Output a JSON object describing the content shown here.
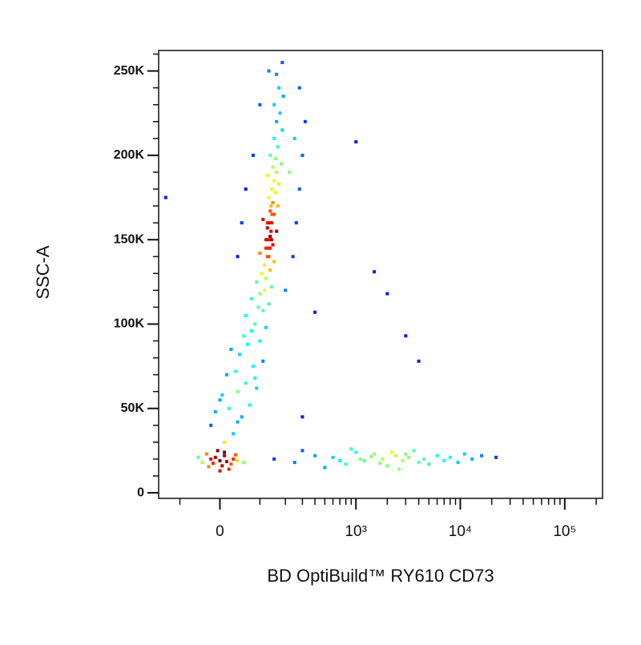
{
  "chart_data": {
    "type": "scatter",
    "x_label": "BD OptiBuild™ RY610 CD73",
    "y_label": "SSC-A",
    "xscale": "asinh",
    "x_cofactor": 100,
    "color_by": "density",
    "xlim": [
      -180,
      230000
    ],
    "ylim": [
      -3300,
      262144
    ],
    "xticks": [
      0,
      {
        "value": 1000,
        "label": "10³"
      },
      {
        "value": 10000,
        "label": "10⁴"
      },
      {
        "value": 100000,
        "label": "10⁵"
      }
    ],
    "xminorticks": [
      -100,
      100,
      200,
      300,
      400,
      500,
      600,
      700,
      800,
      900,
      2000,
      3000,
      4000,
      5000,
      6000,
      7000,
      8000,
      9000,
      20000,
      30000,
      40000,
      50000,
      60000,
      70000,
      80000,
      90000,
      200000
    ],
    "yticks": [
      0,
      {
        "value": 50000,
        "label": "50K"
      },
      {
        "value": 100000,
        "label": "100K"
      },
      {
        "value": 150000,
        "label": "150K"
      },
      {
        "value": 200000,
        "label": "200K"
      },
      {
        "value": 250000,
        "label": "250K"
      }
    ],
    "yminorticks": [
      10000,
      20000,
      30000,
      40000,
      60000,
      70000,
      80000,
      90000,
      110000,
      120000,
      130000,
      140000,
      160000,
      170000,
      180000,
      190000,
      210000,
      220000,
      230000,
      240000,
      260000
    ],
    "x": [
      -40,
      -20,
      0,
      10,
      25,
      -10,
      5,
      30,
      -30,
      15,
      -5,
      20,
      40,
      -50,
      0,
      10,
      -15,
      35,
      55,
      -25,
      10,
      30,
      -20,
      50,
      20,
      70,
      0,
      40,
      90,
      60,
      15,
      35,
      80,
      110,
      -10,
      45,
      25,
      65,
      100,
      55,
      5,
      75,
      120,
      40,
      85,
      85,
      60,
      110,
      95,
      130,
      75,
      100,
      115,
      140,
      90,
      120,
      105,
      135,
      115,
      150,
      125,
      100,
      130,
      145,
      120,
      135,
      160,
      125,
      140,
      110,
      150,
      135,
      165,
      145,
      130,
      155,
      140,
      170,
      150,
      125,
      160,
      145,
      180,
      155,
      135,
      165,
      150,
      185,
      160,
      175,
      150,
      190,
      170,
      160,
      185,
      130,
      120,
      128,
      138,
      132,
      142,
      138,
      140,
      135,
      125,
      200,
      240,
      260,
      280,
      300,
      320,
      280,
      60,
      80,
      50,
      40,
      100,
      130,
      250,
      220,
      150,
      250,
      400,
      600,
      800,
      1000,
      1200,
      1500,
      1800,
      2000,
      2400,
      2800,
      3200,
      3600,
      4000,
      4500,
      5000,
      6000,
      7000,
      8000,
      9500,
      11000,
      13000,
      16000,
      22000,
      300,
      500,
      700,
      900,
      1100,
      1400,
      1700,
      2200,
      3000,
      2600,
      -150,
      1500,
      2000,
      3000,
      4000,
      1000,
      400,
      300
    ],
    "values": [
      18000,
      20000,
      19000,
      22000,
      17000,
      21000,
      16000,
      20000,
      23000,
      18500,
      25000,
      14000,
      19000,
      21000,
      13000,
      24000,
      17500,
      22500,
      18000,
      15500,
      30000,
      35000,
      40000,
      45000,
      50000,
      52000,
      55000,
      60000,
      62000,
      65000,
      70000,
      72000,
      75000,
      78000,
      48000,
      82000,
      85000,
      88000,
      90000,
      93000,
      58000,
      96000,
      98000,
      42000,
      68000,
      100000,
      105000,
      108000,
      110000,
      112000,
      115000,
      118000,
      120000,
      122000,
      125000,
      127000,
      130000,
      132000,
      135000,
      137000,
      140000,
      142000,
      145000,
      147000,
      150000,
      152000,
      155000,
      157000,
      160000,
      162000,
      165000,
      167000,
      170000,
      172000,
      175000,
      178000,
      180000,
      183000,
      185000,
      188000,
      190000,
      193000,
      195000,
      198000,
      200000,
      205000,
      210000,
      215000,
      220000,
      225000,
      230000,
      235000,
      240000,
      248000,
      255000,
      140000,
      145000,
      150000,
      155000,
      160000,
      165000,
      170000,
      150000,
      145000,
      160000,
      120000,
      140000,
      160000,
      180000,
      200000,
      220000,
      240000,
      180000,
      200000,
      160000,
      140000,
      230000,
      250000,
      210000,
      190000,
      20000,
      18000,
      22000,
      21000,
      17000,
      24000,
      19000,
      23000,
      20000,
      16000,
      22000,
      19000,
      21000,
      25000,
      18000,
      20000,
      17000,
      22000,
      19000,
      21000,
      18000,
      23000,
      20000,
      22000,
      21000,
      25000,
      15000,
      19000,
      26000,
      20000,
      21500,
      17500,
      24000,
      23000,
      14000,
      175000,
      131000,
      118000,
      93000,
      78000,
      208000,
      107000,
      45000
    ]
  }
}
